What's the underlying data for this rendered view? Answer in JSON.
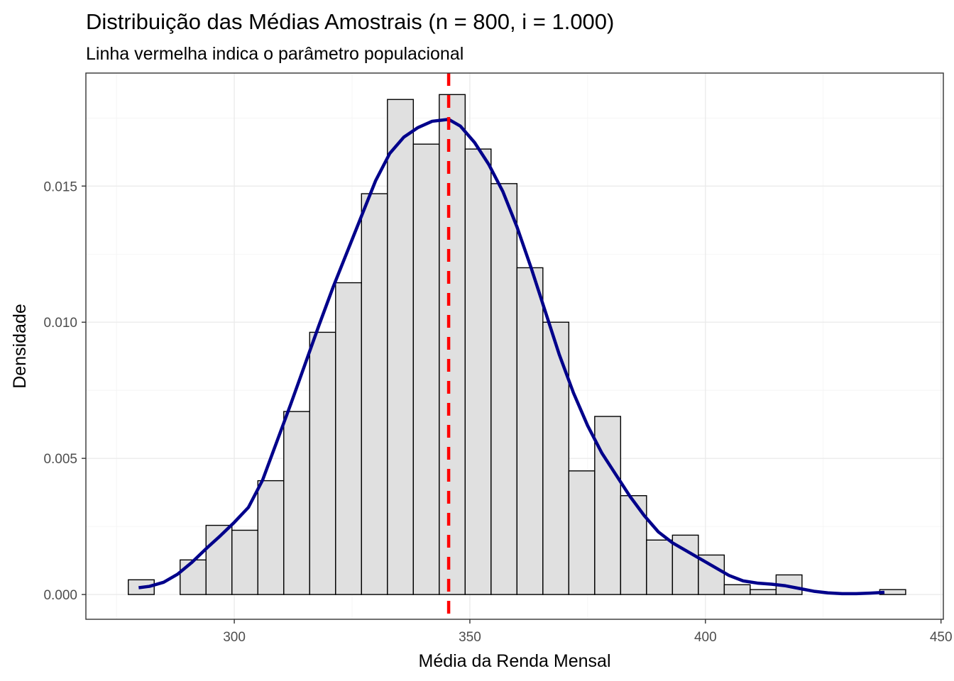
{
  "chart_data": {
    "type": "histogram",
    "title": "Distribuição das Médias Amostrais (n = 800, i = 1.000)",
    "subtitle": "Linha vermelha indica o parâmetro populacional",
    "xlabel": "Média da Renda Mensal",
    "ylabel": "Densidade",
    "xlim": [
      268.5,
      450.5
    ],
    "ylim": [
      -0.00091,
      0.01915
    ],
    "x_ticks": [
      300,
      350,
      400,
      450
    ],
    "x_tick_labels": [
      "300",
      "350",
      "400",
      "450"
    ],
    "y_ticks": [
      0.0,
      0.005,
      0.01,
      0.015
    ],
    "y_tick_labels": [
      "0.000",
      "0.005",
      "0.010",
      "0.015"
    ],
    "grid": true,
    "legend": "none",
    "bin_width": 5.5,
    "bins": [
      {
        "xmin": 277.5,
        "xmax": 283.0,
        "density": 0.00054
      },
      {
        "xmin": 283.0,
        "xmax": 288.5,
        "density": 0.0
      },
      {
        "xmin": 288.5,
        "xmax": 294.0,
        "density": 0.00127
      },
      {
        "xmin": 294.0,
        "xmax": 299.5,
        "density": 0.00254
      },
      {
        "xmin": 299.5,
        "xmax": 305.0,
        "density": 0.00236
      },
      {
        "xmin": 305.0,
        "xmax": 310.5,
        "density": 0.00418
      },
      {
        "xmin": 310.5,
        "xmax": 316.0,
        "density": 0.00672
      },
      {
        "xmin": 316.0,
        "xmax": 321.5,
        "density": 0.00963
      },
      {
        "xmin": 321.5,
        "xmax": 327.0,
        "density": 0.01145
      },
      {
        "xmin": 327.0,
        "xmax": 332.5,
        "density": 0.01472
      },
      {
        "xmin": 332.5,
        "xmax": 338.0,
        "density": 0.01818
      },
      {
        "xmin": 338.0,
        "xmax": 343.5,
        "density": 0.01654
      },
      {
        "xmin": 343.5,
        "xmax": 349.0,
        "density": 0.01836
      },
      {
        "xmin": 349.0,
        "xmax": 354.5,
        "density": 0.01636
      },
      {
        "xmin": 354.5,
        "xmax": 360.0,
        "density": 0.01509
      },
      {
        "xmin": 360.0,
        "xmax": 365.5,
        "density": 0.012
      },
      {
        "xmin": 365.5,
        "xmax": 371.0,
        "density": 0.01
      },
      {
        "xmin": 371.0,
        "xmax": 376.5,
        "density": 0.00454
      },
      {
        "xmin": 376.5,
        "xmax": 382.0,
        "density": 0.00654
      },
      {
        "xmin": 382.0,
        "xmax": 387.5,
        "density": 0.00363
      },
      {
        "xmin": 387.5,
        "xmax": 393.0,
        "density": 0.002
      },
      {
        "xmin": 393.0,
        "xmax": 398.5,
        "density": 0.00218
      },
      {
        "xmin": 398.5,
        "xmax": 404.0,
        "density": 0.00145
      },
      {
        "xmin": 404.0,
        "xmax": 409.5,
        "density": 0.00036
      },
      {
        "xmin": 409.5,
        "xmax": 415.0,
        "density": 0.00018
      },
      {
        "xmin": 415.0,
        "xmax": 420.5,
        "density": 0.00072
      },
      {
        "xmin": 420.5,
        "xmax": 426.0,
        "density": 0.0
      },
      {
        "xmin": 426.0,
        "xmax": 431.5,
        "density": 0.0
      },
      {
        "xmin": 431.5,
        "xmax": 437.0,
        "density": 0.0
      },
      {
        "xmin": 437.0,
        "xmax": 442.5,
        "density": 0.00018
      }
    ],
    "density_curve": {
      "x": [
        279.7,
        282,
        285,
        288,
        291,
        294,
        297,
        300,
        303,
        306,
        309,
        312,
        315,
        318,
        321,
        324,
        327,
        330,
        333,
        336,
        339,
        342,
        345.5,
        348,
        351,
        354,
        357,
        360,
        363,
        366,
        369,
        372,
        375,
        378,
        381,
        384,
        387,
        390,
        393,
        396,
        399,
        402,
        405,
        408,
        411,
        414,
        417,
        420,
        423,
        426,
        429,
        432,
        435,
        438
      ],
      "y": [
        0.00025,
        0.0003,
        0.00045,
        0.00075,
        0.00118,
        0.00168,
        0.00215,
        0.00265,
        0.0032,
        0.0042,
        0.0056,
        0.007,
        0.00845,
        0.0099,
        0.0113,
        0.0126,
        0.0139,
        0.0152,
        0.0162,
        0.0168,
        0.01715,
        0.01738,
        0.01745,
        0.0172,
        0.0166,
        0.0158,
        0.0148,
        0.0135,
        0.012,
        0.0104,
        0.0088,
        0.0074,
        0.0062,
        0.0052,
        0.0044,
        0.0036,
        0.0029,
        0.0023,
        0.0019,
        0.0016,
        0.0013,
        0.001,
        0.0007,
        0.0005,
        0.00042,
        0.00038,
        0.00032,
        0.00022,
        0.00012,
        6e-05,
        3e-05,
        3e-05,
        5e-05,
        8e-05
      ],
      "color": "#00008b"
    },
    "reference_line": {
      "x": 345.5,
      "color": "#ff0000",
      "style": "dashed"
    },
    "bar_fill": "#e0e0e0",
    "bar_stroke": "#000000"
  }
}
